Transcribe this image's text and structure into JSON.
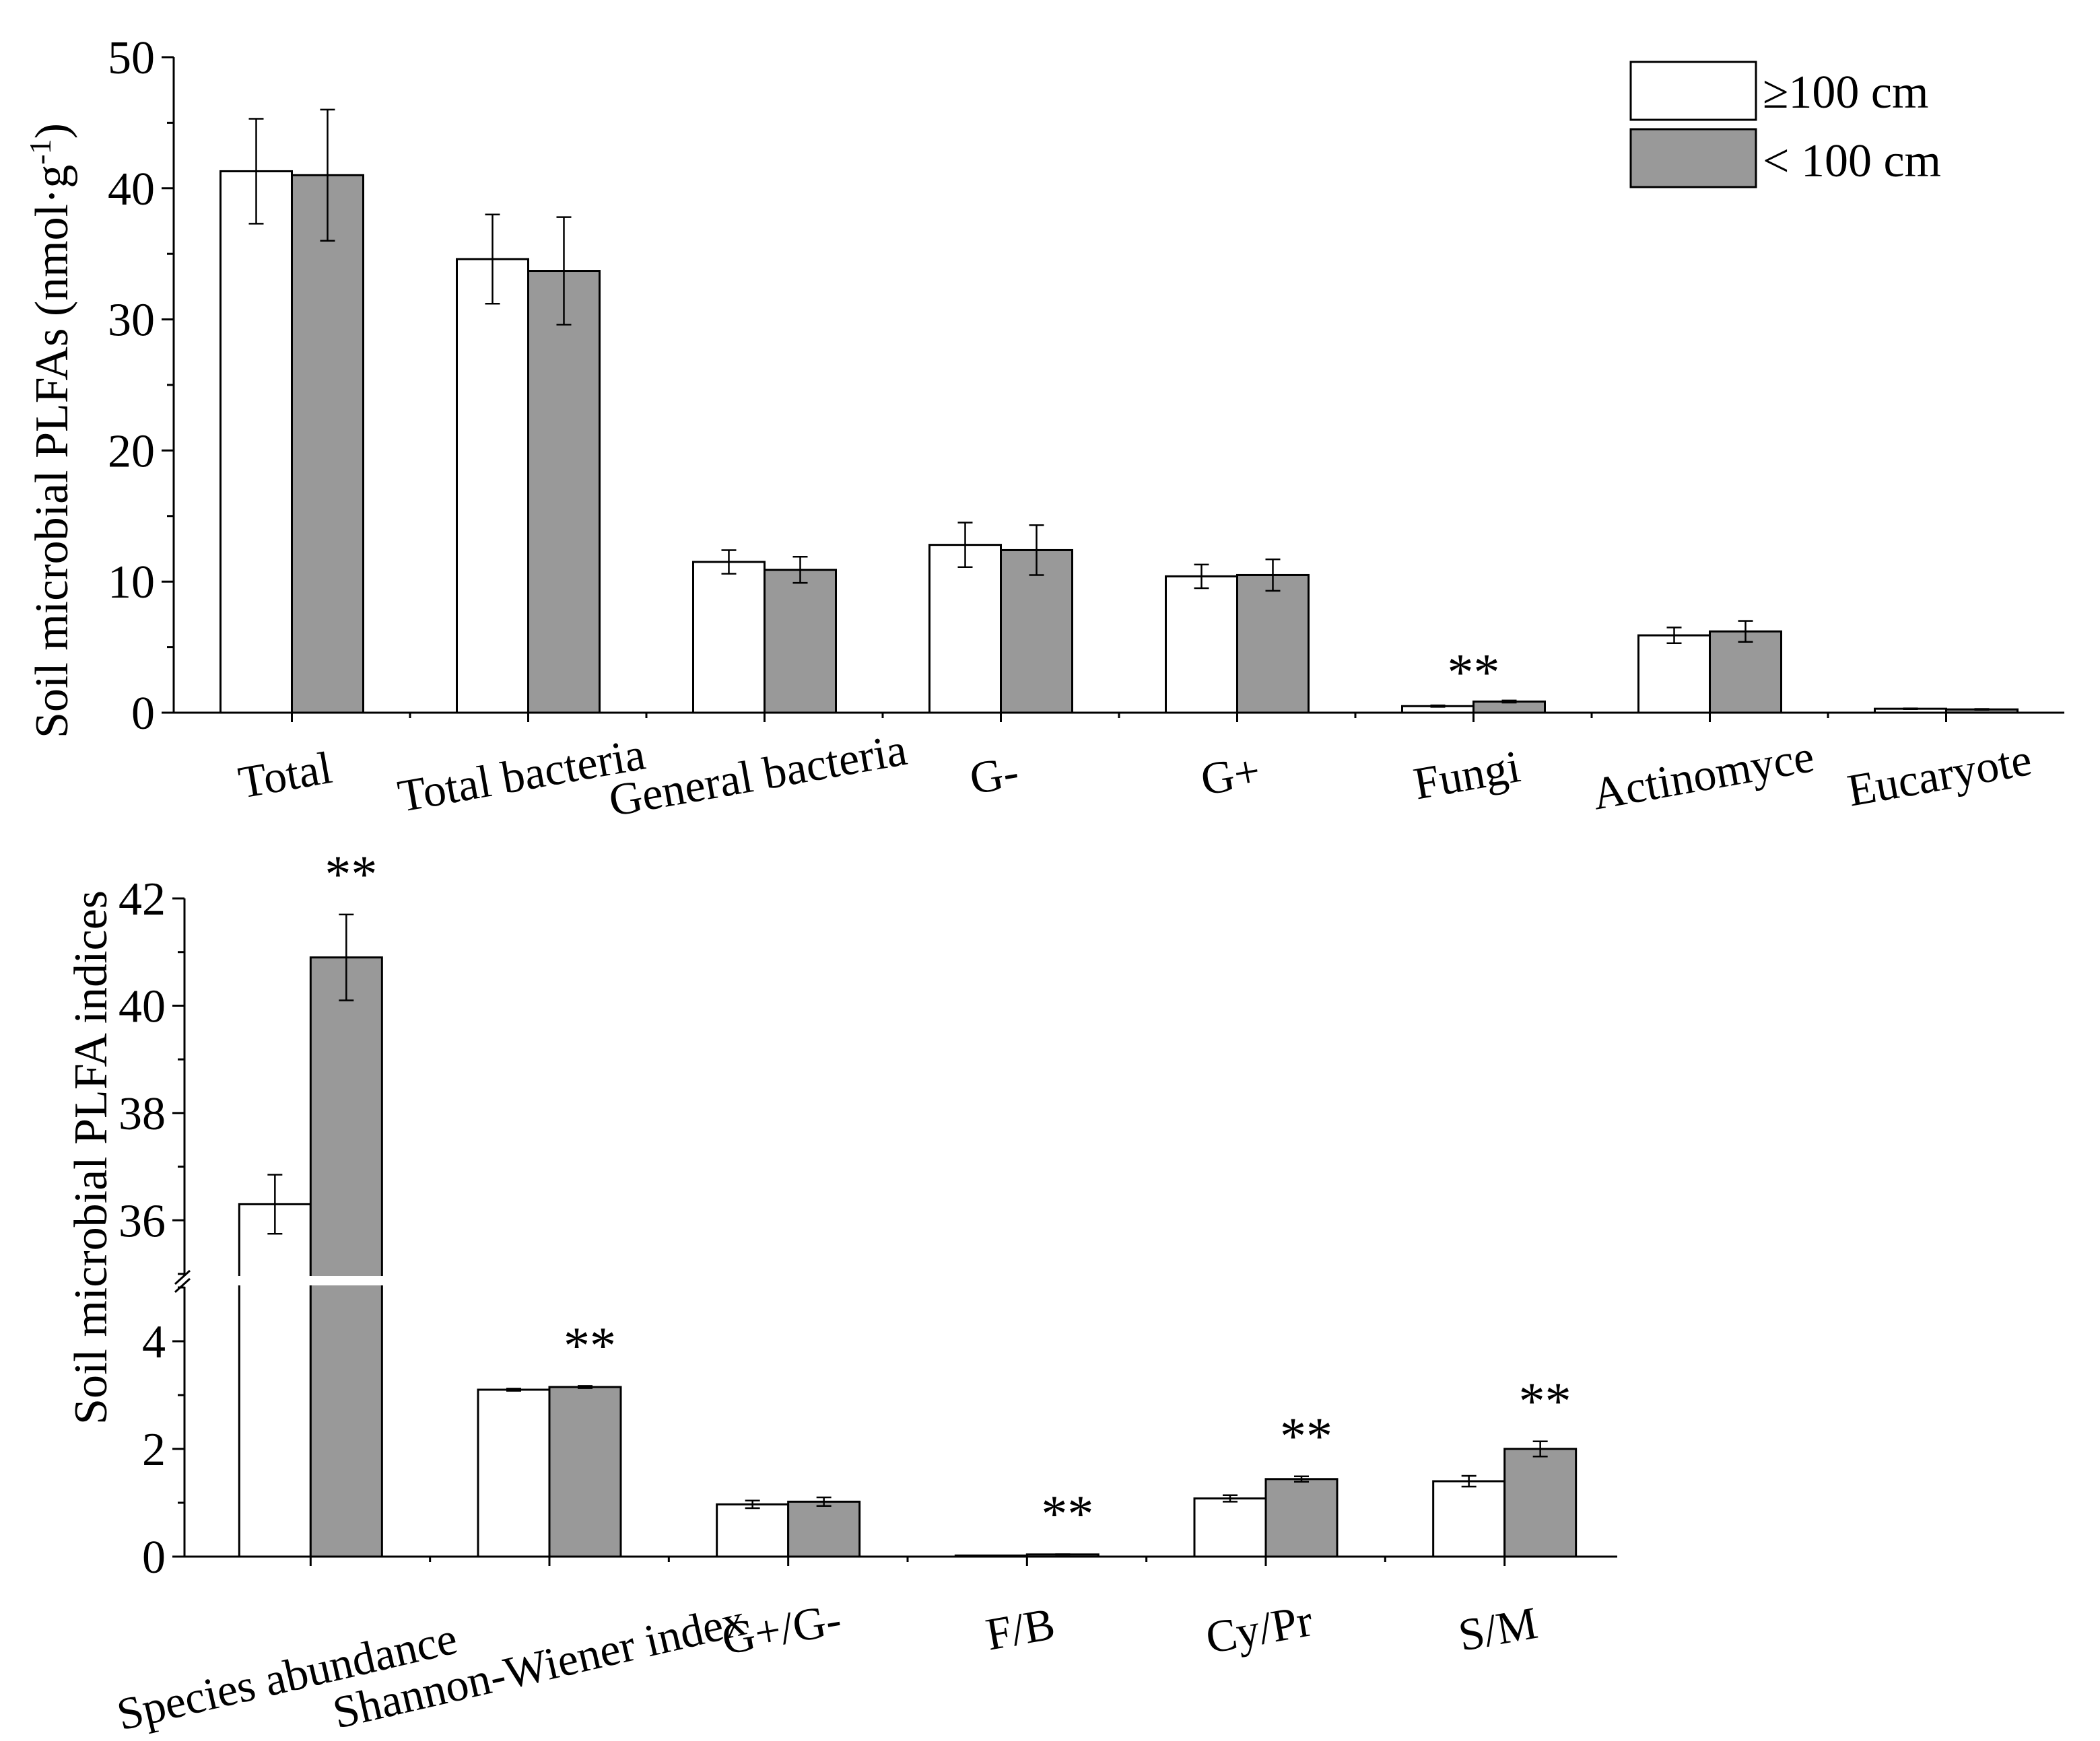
{
  "colors": {
    "series1": "#ffffff",
    "series2": "#999999",
    "axis": "#000000"
  },
  "legend": {
    "items": [
      "≥100 cm",
      "< 100 cm"
    ]
  },
  "chart_data": [
    {
      "type": "bar",
      "ylabel": "Soil microbial PLFAs (nmol·g",
      "ylabel_sup": "-1",
      "ylabel_close": ")",
      "ylim": [
        0,
        50
      ],
      "yticks": [
        0,
        10,
        20,
        30,
        40,
        50
      ],
      "categories": [
        "Total",
        "Total bacteria",
        "General bacteria",
        "G-",
        "G+",
        "Fungi",
        "Actinomyce",
        "Eucaryote"
      ],
      "series": [
        {
          "name": "≥100 cm",
          "values": [
            41.3,
            34.6,
            11.5,
            12.8,
            10.4,
            0.5,
            5.9,
            0.3
          ],
          "errors": [
            4.0,
            3.4,
            0.9,
            1.7,
            0.9,
            0.06,
            0.6,
            0.03
          ]
        },
        {
          "name": "< 100 cm",
          "values": [
            41.0,
            33.7,
            10.9,
            12.4,
            10.5,
            0.85,
            6.2,
            0.25
          ],
          "errors": [
            5.0,
            4.1,
            1.0,
            1.9,
            1.2,
            0.08,
            0.8,
            0.03
          ]
        }
      ],
      "annotations": [
        {
          "category": "Fungi",
          "text": "**"
        }
      ]
    },
    {
      "type": "bar",
      "ylabel": "Soil microbial PLFA indices",
      "axis_break": true,
      "lower_ylim": [
        0,
        5
      ],
      "lower_yticks": [
        0,
        2,
        4
      ],
      "upper_ylim": [
        35,
        42
      ],
      "upper_yticks": [
        36,
        38,
        40,
        42
      ],
      "categories": [
        "Species abundance",
        "Shannon-Wiener index",
        "G+/G-",
        "F/B",
        "Cy/Pr",
        "S/M"
      ],
      "series": [
        {
          "name": "≥100 cm",
          "values": [
            36.3,
            3.1,
            0.97,
            0.02,
            1.08,
            1.4
          ],
          "errors": [
            0.55,
            0.02,
            0.07,
            0.002,
            0.06,
            0.1
          ]
        },
        {
          "name": "< 100 cm",
          "values": [
            40.9,
            3.15,
            1.02,
            0.04,
            1.44,
            2.0
          ],
          "errors": [
            0.8,
            0.02,
            0.08,
            0.003,
            0.05,
            0.14
          ]
        }
      ],
      "annotations": [
        {
          "category": "Species abundance",
          "text": "**"
        },
        {
          "category": "Shannon-Wiener index",
          "text": "**"
        },
        {
          "category": "F/B",
          "text": "**"
        },
        {
          "category": "Cy/Pr",
          "text": "**"
        },
        {
          "category": "S/M",
          "text": "**"
        }
      ]
    }
  ]
}
